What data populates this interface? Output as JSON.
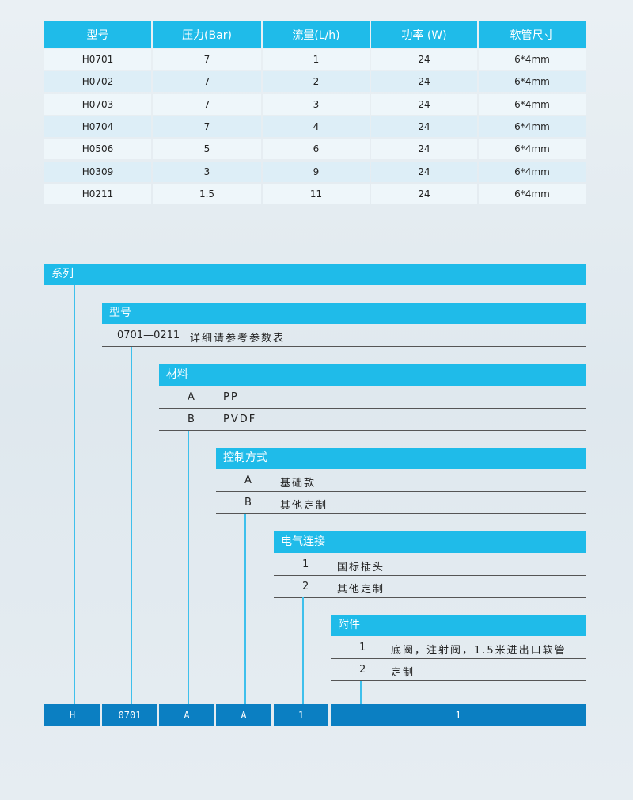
{
  "table": {
    "headers": [
      "型号",
      "压力(Bar)",
      "流量(L/h)",
      "功率 (W)",
      "软管尺寸"
    ],
    "rows": [
      [
        "H0701",
        "7",
        "1",
        "24",
        "6*4mm"
      ],
      [
        "H0702",
        "7",
        "2",
        "24",
        "6*4mm"
      ],
      [
        "H0703",
        "7",
        "3",
        "24",
        "6*4mm"
      ],
      [
        "H0704",
        "7",
        "4",
        "24",
        "6*4mm"
      ],
      [
        "H0506",
        "5",
        "6",
        "24",
        "6*4mm"
      ],
      [
        "H0309",
        "3",
        "9",
        "24",
        "6*4mm"
      ],
      [
        "H0211",
        "1.5",
        "11",
        "24",
        "6*4mm"
      ]
    ]
  },
  "diagram": {
    "series": {
      "title": "系列"
    },
    "model": {
      "title": "型号",
      "rows": [
        [
          "0701—0211",
          "详细请参考参数表"
        ]
      ]
    },
    "material": {
      "title": "材料",
      "rows": [
        [
          "A",
          "PP"
        ],
        [
          "B",
          "PVDF"
        ]
      ]
    },
    "control": {
      "title": "控制方式",
      "rows": [
        [
          "A",
          "基础款"
        ],
        [
          "B",
          "其他定制"
        ]
      ]
    },
    "electrical": {
      "title": "电气连接",
      "rows": [
        [
          "1",
          "国标插头"
        ],
        [
          "2",
          "其他定制"
        ]
      ]
    },
    "accessory": {
      "title": "附件",
      "rows": [
        [
          "1",
          "底阀，注射阀，1.5米进出口软管"
        ],
        [
          "2",
          "定制"
        ]
      ]
    },
    "code": [
      "H",
      "0701",
      "A",
      "A",
      "1",
      "1"
    ]
  },
  "colors": {
    "header": "#1fbbe9",
    "code_box": "#0b7fc2",
    "row_light": "#eef6fa",
    "row_alt": "#ddeef7"
  }
}
